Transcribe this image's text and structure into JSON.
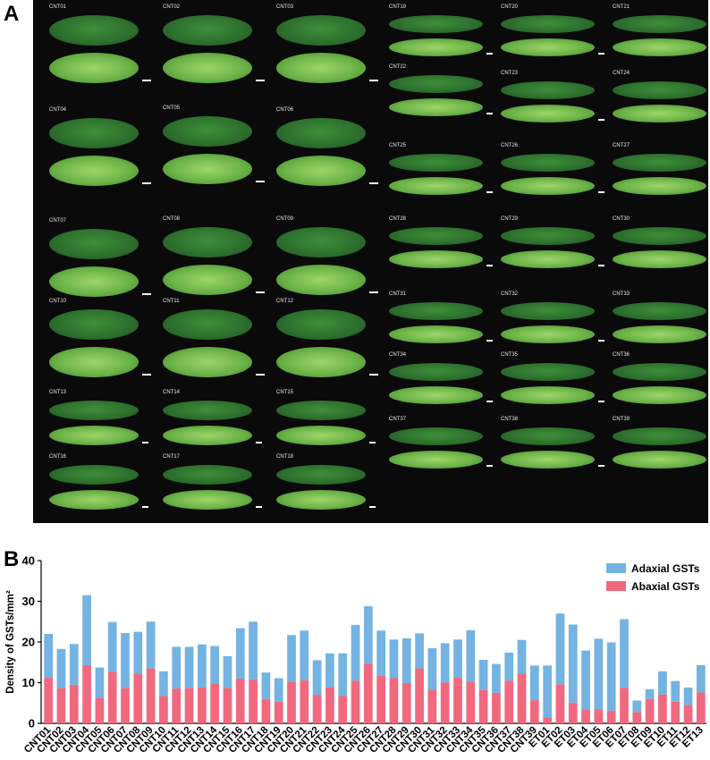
{
  "panel_a": {
    "label": "A",
    "leaves": [
      "CNT01",
      "CNT02",
      "CNT03",
      "CNT19",
      "CNT20",
      "CNT21",
      "CNT22",
      "CNT23",
      "CNT24",
      "CNT04",
      "CNT05",
      "CNT06",
      "CNT25",
      "CNT26",
      "CNT27",
      "CNT07",
      "CNT08",
      "CNT09",
      "CNT28",
      "CNT29",
      "CNT30",
      "CNT10",
      "CNT11",
      "CNT12",
      "CNT31",
      "CNT32",
      "CNT33",
      "CNT34",
      "CNT35",
      "CNT36",
      "CNT13",
      "CNT14",
      "CNT15",
      "CNT16",
      "CNT17",
      "CNT18",
      "CNT37",
      "CNT38",
      "CNT39"
    ]
  },
  "panel_b": {
    "label": "B"
  },
  "chart_data": {
    "type": "bar",
    "stacked": true,
    "ylabel": "Density of GSTs/mm²",
    "ylim": [
      0,
      40
    ],
    "yticks": [
      0,
      10,
      20,
      30,
      40
    ],
    "legend_position": "top-right",
    "categories": [
      "CNT01",
      "CNT02",
      "CNT03",
      "CNT04",
      "CNT05",
      "CNT06",
      "CNT07",
      "CNT08",
      "CNT09",
      "CNT10",
      "CNT11",
      "CNT12",
      "CNT13",
      "CNT14",
      "CNT15",
      "CNT16",
      "CNT17",
      "CNT18",
      "CNT19",
      "CNT20",
      "CNT21",
      "CNT22",
      "CNT23",
      "CNT24",
      "CNT25",
      "CNT26",
      "CNT27",
      "CNT28",
      "CNT29",
      "CNT30",
      "CNT31",
      "CNT32",
      "CNT33",
      "CNT34",
      "CNT35",
      "CNT36",
      "CNT37",
      "CNT38",
      "CNT39",
      "ET01",
      "ET02",
      "ET03",
      "ET04",
      "ET05",
      "ET06",
      "ET07",
      "ET08",
      "ET09",
      "ET10",
      "ET11",
      "ET12",
      "ET13"
    ],
    "series": [
      {
        "name": "Abaxial GSTs",
        "color": "#f0697f",
        "values": [
          11.2,
          8.7,
          9.5,
          14.3,
          6.3,
          12.7,
          8.7,
          12.2,
          13.5,
          6.7,
          8.6,
          8.7,
          8.8,
          9.8,
          8.7,
          11.0,
          10.8,
          6.0,
          5.3,
          10.2,
          10.6,
          7.0,
          8.8,
          6.7,
          10.5,
          14.7,
          11.8,
          11.1,
          9.9,
          13.5,
          8.3,
          10.0,
          11.2,
          10.2,
          8.2,
          7.5,
          10.5,
          12.2,
          5.7,
          1.5,
          9.6,
          5.1,
          3.4,
          3.5,
          3.1,
          8.7,
          2.8,
          6.0,
          7.1,
          5.3,
          4.5,
          7.6
        ]
      },
      {
        "name": "Adaxial GSTs",
        "color": "#74b3e2",
        "values": [
          10.8,
          9.6,
          10.0,
          17.2,
          7.4,
          12.2,
          13.5,
          10.3,
          11.5,
          6.1,
          10.2,
          10.1,
          10.6,
          9.2,
          7.8,
          12.4,
          14.2,
          6.5,
          5.8,
          11.5,
          12.2,
          8.5,
          8.4,
          10.5,
          13.7,
          14.1,
          11.0,
          9.5,
          11.0,
          8.6,
          10.2,
          9.7,
          9.4,
          12.7,
          7.4,
          7.1,
          6.9,
          8.3,
          8.5,
          12.7,
          17.4,
          19.2,
          14.5,
          17.3,
          16.8,
          16.9,
          2.8,
          2.4,
          5.7,
          5.1,
          4.3,
          6.7
        ]
      }
    ]
  }
}
